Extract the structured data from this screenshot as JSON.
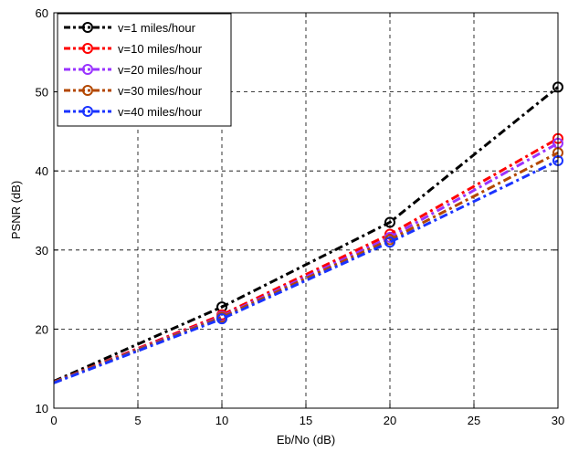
{
  "chart_data": {
    "type": "line",
    "title": "",
    "xlabel": "Eb/No (dB)",
    "ylabel": "PSNR (dB)",
    "xlim": [
      0,
      30
    ],
    "ylim": [
      10,
      60
    ],
    "xticks": [
      0,
      5,
      10,
      15,
      20,
      25,
      30
    ],
    "yticks": [
      10,
      20,
      30,
      40,
      50,
      60
    ],
    "grid": true,
    "legend_position": "top-left",
    "x": [
      0,
      10,
      20,
      30
    ],
    "series": [
      {
        "name": "v=1 miles/hour",
        "color": "#000000",
        "values": [
          13.4,
          22.8,
          33.5,
          50.6
        ]
      },
      {
        "name": "v=10 miles/hour",
        "color": "#ff0000",
        "values": [
          13.3,
          21.8,
          32.0,
          44.1
        ]
      },
      {
        "name": "v=20 miles/hour",
        "color": "#9933ff",
        "values": [
          13.3,
          21.6,
          31.6,
          43.5
        ]
      },
      {
        "name": "v=30 miles/hour",
        "color": "#b34700",
        "values": [
          13.3,
          21.5,
          31.3,
          42.3
        ]
      },
      {
        "name": "v=40 miles/hour",
        "color": "#1a33ff",
        "values": [
          13.2,
          21.3,
          31.0,
          41.3
        ]
      }
    ]
  }
}
